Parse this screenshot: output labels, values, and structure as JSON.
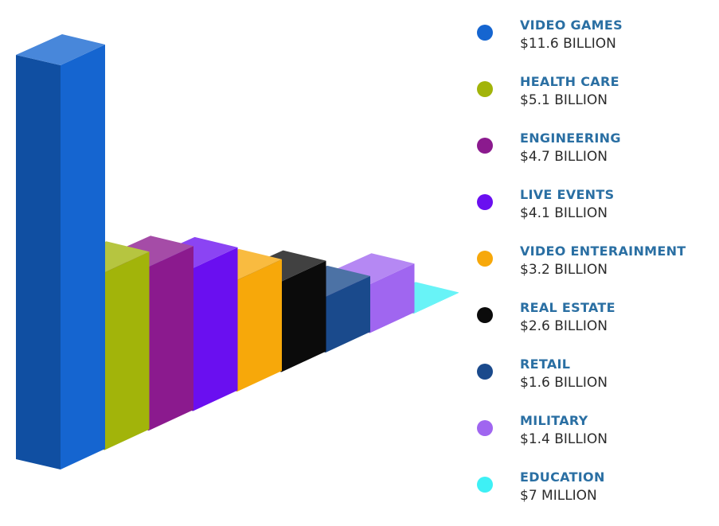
{
  "chart_data": {
    "type": "bar",
    "title": "",
    "xlabel": "",
    "ylabel": "",
    "categories": [
      "VIDEO GAMES",
      "HEALTH CARE",
      "ENGINEERING",
      "LIVE EVENTS",
      "VIDEO ENTERAINMENT",
      "REAL ESTATE",
      "RETAIL",
      "MILITARY",
      "EDUCATION"
    ],
    "values": [
      11.6,
      5.1,
      4.7,
      4.1,
      3.2,
      2.6,
      1.6,
      1.4,
      0.007
    ],
    "value_labels": [
      "$11.6 BILLION",
      "$5.1 BILLION",
      "$4.7 BILLION",
      "$4.1 BILLION",
      "$3.2 BILLION",
      "$2.6 BILLION",
      "$1.6 BILLION",
      "$1.4 BILLION",
      "$7 MILLION"
    ],
    "colors": [
      "#1565d0",
      "#a2b40a",
      "#8b1a8e",
      "#6a0ff0",
      "#f7a80a",
      "#0b0b0b",
      "#1a4a8c",
      "#a066f0",
      "#3ef0f5"
    ],
    "legend_position": "right",
    "grid": false
  }
}
